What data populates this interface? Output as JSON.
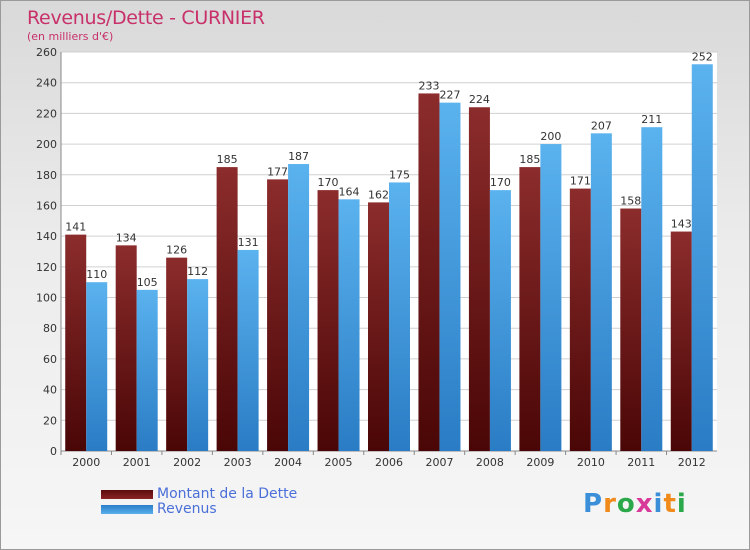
{
  "chart_data": {
    "type": "bar",
    "title": "Revenus/Dette - CURNIER",
    "subtitle": "(en milliers d'€)",
    "categories": [
      "2000",
      "2001",
      "2002",
      "2003",
      "2004",
      "2005",
      "2006",
      "2007",
      "2008",
      "2009",
      "2010",
      "2011",
      "2012"
    ],
    "series": [
      {
        "name": "Montant de la Dette",
        "color": "#7a1818",
        "values": [
          141,
          134,
          126,
          185,
          177,
          170,
          162,
          233,
          224,
          185,
          171,
          158,
          143
        ]
      },
      {
        "name": "Revenus",
        "color": "#3a9ae0",
        "values": [
          110,
          105,
          112,
          131,
          187,
          164,
          175,
          227,
          170,
          200,
          207,
          211,
          252
        ]
      }
    ],
    "ylim": [
      0,
      260
    ],
    "yticks": [
      0,
      20,
      40,
      60,
      80,
      100,
      120,
      140,
      160,
      180,
      200,
      220,
      240,
      260
    ],
    "grid": true,
    "legend_position": "bottom-left"
  },
  "logo": {
    "letters": [
      "P",
      "r",
      "o",
      "x",
      "i",
      "t",
      "i"
    ],
    "colors": [
      "#3a8fd8",
      "#f08a1a",
      "#2aa84a",
      "#d83a9a",
      "#3a8fd8",
      "#f08a1a",
      "#2aa84a"
    ]
  }
}
